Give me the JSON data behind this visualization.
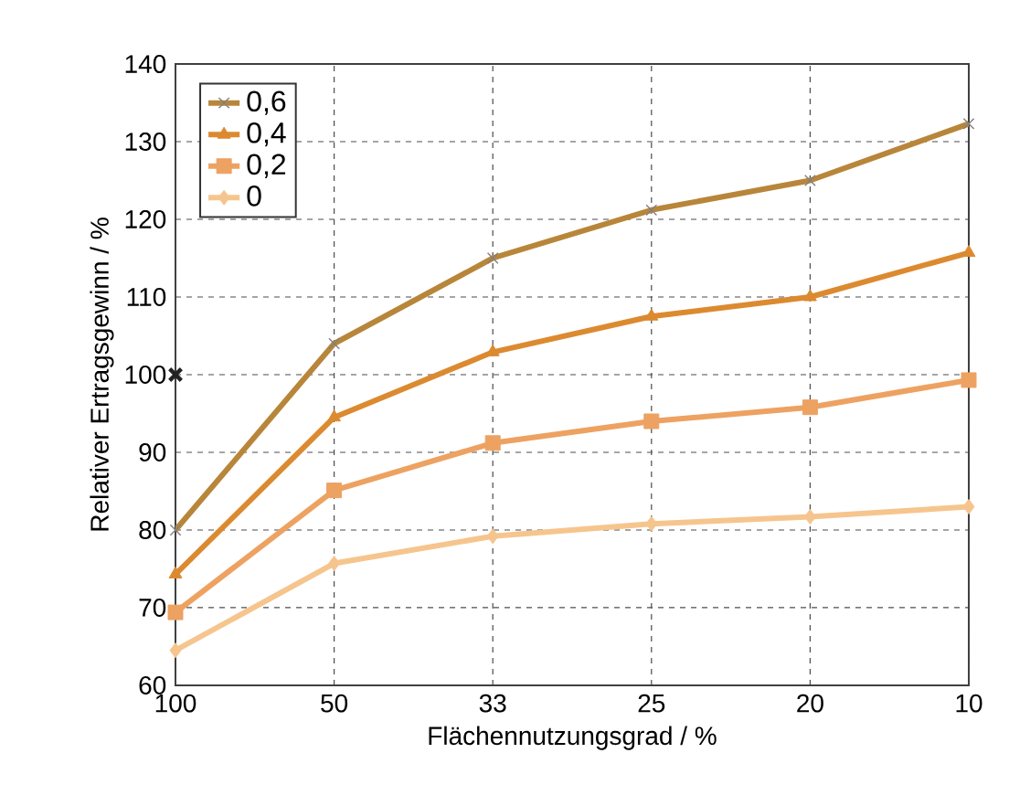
{
  "chart_data": {
    "type": "line",
    "xlabel": "Flächennutzungsgrad / %",
    "ylabel": "Relativer Ertragsgewinn / %",
    "categories": [
      "100",
      "50",
      "33",
      "25",
      "20",
      "10"
    ],
    "ylim": [
      60,
      140
    ],
    "yticks": [
      60,
      70,
      80,
      90,
      100,
      110,
      120,
      130,
      140
    ],
    "grid": true,
    "legend": "top left",
    "series": [
      {
        "name": "0,6",
        "color": "#b8863a",
        "marker": "cross",
        "values": [
          80,
          104,
          115,
          121.2,
          125,
          132.3
        ]
      },
      {
        "name": "0,4",
        "color": "#dc8a30",
        "marker": "triangle",
        "values": [
          74.3,
          94.5,
          102.9,
          107.5,
          110,
          115.7
        ]
      },
      {
        "name": "0,2",
        "color": "#eda262",
        "marker": "square",
        "values": [
          69.4,
          85.1,
          91.2,
          94,
          95.8,
          99.3
        ]
      },
      {
        "name": "0",
        "color": "#f6c58e",
        "marker": "diamond",
        "values": [
          64.5,
          75.7,
          79.2,
          80.8,
          81.7,
          83
        ]
      },
      {
        "type": "scatter",
        "color": "#222222",
        "marker": "cross",
        "x": [
          "100"
        ],
        "values": [
          100
        ]
      }
    ]
  }
}
